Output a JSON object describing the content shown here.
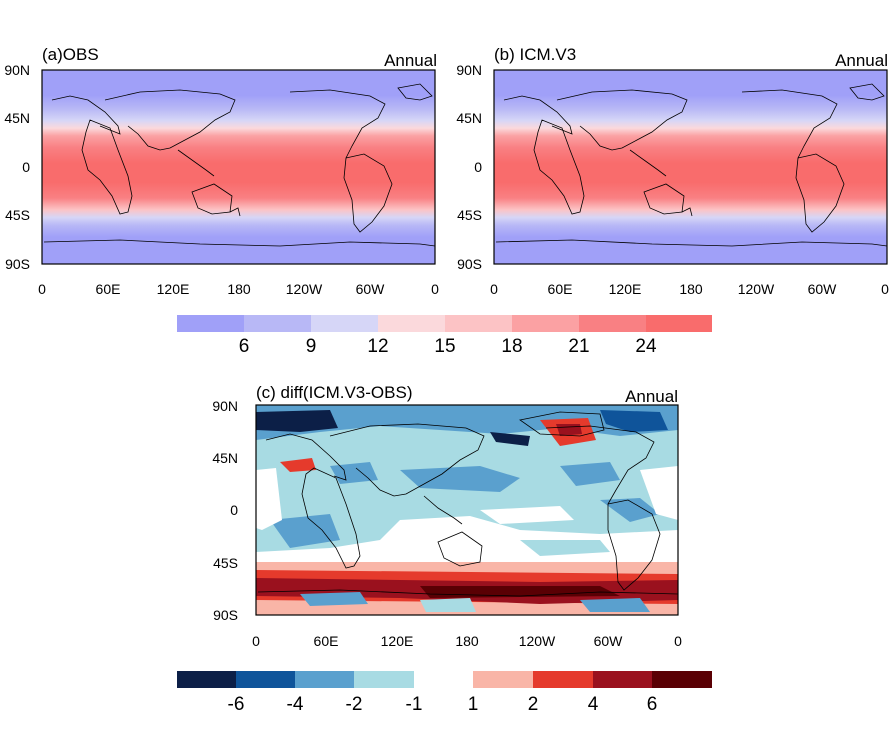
{
  "panels": [
    {
      "id": "a",
      "title": "(a)OBS",
      "season": "Annual"
    },
    {
      "id": "b",
      "title": "(b) ICM.V3",
      "season": "Annual"
    },
    {
      "id": "c",
      "title": "(c) diff(ICM.V3-OBS)",
      "season": "Annual"
    }
  ],
  "axes": {
    "lat_ticks": [
      "90N",
      "45N",
      "0",
      "45S",
      "90S"
    ],
    "lon_ticks": [
      "0",
      "60E",
      "120E",
      "180",
      "120W",
      "60W",
      "0"
    ]
  },
  "colorbar_top": {
    "colors": [
      "#a0a0f8",
      "#b8b8f6",
      "#d6d6f7",
      "#fbd9dc",
      "#fcc3c5",
      "#fba1a3",
      "#f98083",
      "#f96c6c"
    ],
    "labels": [
      "6",
      "9",
      "12",
      "15",
      "18",
      "21",
      "24"
    ]
  },
  "colorbar_diff": {
    "colors_neg": [
      "#0c1f47",
      "#0f549a",
      "#5aa0ce",
      "#a8dbe3"
    ],
    "colors_pos": [
      "#f9b5a7",
      "#e53a2c",
      "#9a111e",
      "#5a0004"
    ],
    "labels_neg": [
      "-6",
      "-4",
      "-2",
      "-1"
    ],
    "labels_pos": [
      "1",
      "2",
      "4",
      "6"
    ]
  }
}
